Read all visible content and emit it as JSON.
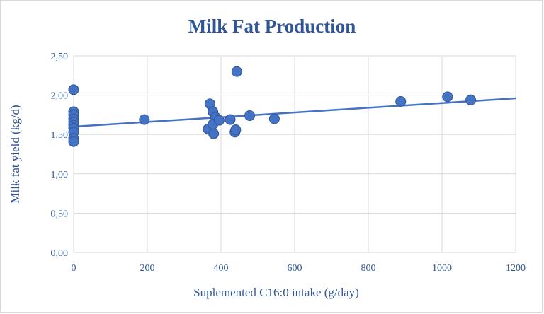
{
  "chart_data": {
    "type": "scatter",
    "title": "Milk Fat Production",
    "xlabel": "Suplemented C16:0 intake (g/day)",
    "ylabel": "Milk fat yield (kg/d)",
    "xlim": [
      0,
      1200
    ],
    "ylim": [
      0,
      2.5
    ],
    "x_ticks": [
      "0",
      "200",
      "400",
      "600",
      "800",
      "1000",
      "1200"
    ],
    "y_ticks": [
      "0,00",
      "0,50",
      "1,00",
      "1,50",
      "2,00",
      "2,50"
    ],
    "grid": true,
    "legend": "none",
    "colors": {
      "marker": "#4472c4",
      "marker_edge": "#2f5597",
      "trendline": "#4472c4",
      "text": "#2f5597",
      "grid": "#d9d9d9"
    },
    "series": [
      {
        "x": [
          0,
          0,
          0,
          0,
          0,
          0,
          0,
          0,
          0,
          0,
          192,
          370,
          365,
          378,
          380,
          385,
          378,
          395,
          425,
          438,
          440,
          443,
          478,
          545,
          888,
          1015,
          1078
        ],
        "y": [
          2.07,
          1.79,
          1.75,
          1.7,
          1.66,
          1.62,
          1.58,
          1.53,
          1.45,
          1.41,
          1.69,
          1.89,
          1.57,
          1.79,
          1.51,
          1.72,
          1.63,
          1.68,
          1.69,
          1.53,
          1.56,
          2.3,
          1.74,
          1.7,
          1.92,
          1.98,
          1.94
        ]
      }
    ],
    "trendline": {
      "type": "linear",
      "x": [
        0,
        1200
      ],
      "y": [
        1.6,
        1.96
      ]
    }
  }
}
